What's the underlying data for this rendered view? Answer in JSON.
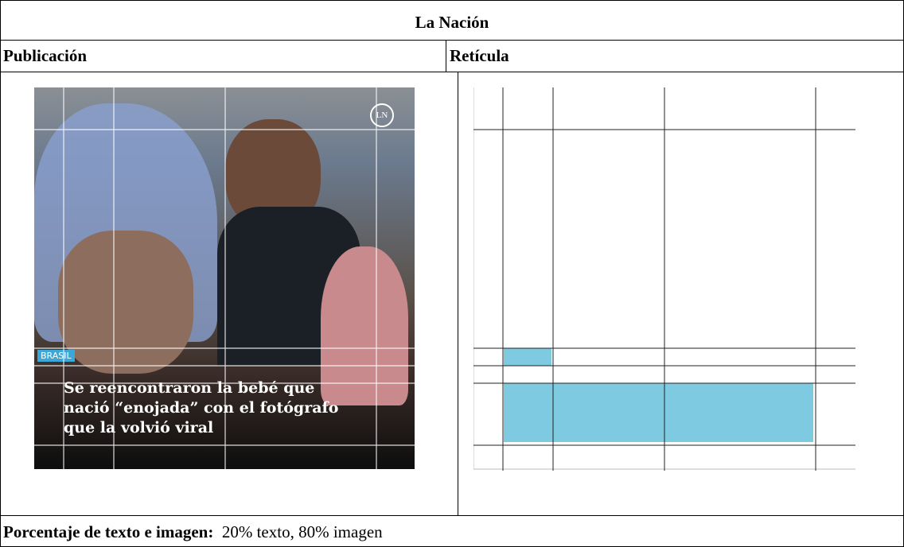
{
  "title": "La Nación",
  "columns": [
    "Publicación",
    "Retícula"
  ],
  "publication": {
    "logo": "LN",
    "tag": "BRASIL",
    "headline": [
      "Se reencontraron la bebé que",
      "nació “enojada” con el fotógrafo",
      "que la volvió viral"
    ]
  },
  "footer": {
    "label": "Porcentaje de texto e imagen:",
    "value": "20% texto, 80% imagen"
  }
}
